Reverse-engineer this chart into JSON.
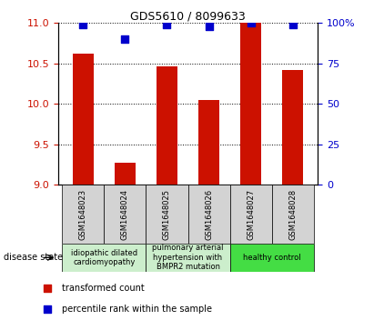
{
  "title": "GDS5610 / 8099633",
  "samples": [
    "GSM1648023",
    "GSM1648024",
    "GSM1648025",
    "GSM1648026",
    "GSM1648027",
    "GSM1648028"
  ],
  "transformed_count": [
    10.62,
    9.27,
    10.47,
    10.05,
    11.0,
    10.42
  ],
  "percentile_rank": [
    99,
    90,
    99,
    98,
    100,
    99
  ],
  "ylim_left": [
    9,
    11
  ],
  "ylim_right": [
    0,
    100
  ],
  "yticks_left": [
    9,
    9.5,
    10,
    10.5,
    11
  ],
  "yticks_right": [
    0,
    25,
    50,
    75,
    100
  ],
  "ytick_labels_right": [
    "0",
    "25",
    "50",
    "75",
    "100%"
  ],
  "bar_color": "#cc1100",
  "dot_color": "#0000cc",
  "grid_color": "black",
  "disease_groups": [
    {
      "label": "idiopathic dilated\ncardiomyopathy",
      "start": 0,
      "end": 2,
      "color": "#cceecc"
    },
    {
      "label": "pulmonary arterial\nhypertension with\nBMPR2 mutation",
      "start": 2,
      "end": 4,
      "color": "#cceecc"
    },
    {
      "label": "healthy control",
      "start": 4,
      "end": 6,
      "color": "#44dd44"
    }
  ],
  "legend_items": [
    {
      "label": "transformed count",
      "color": "#cc1100"
    },
    {
      "label": "percentile rank within the sample",
      "color": "#0000cc"
    }
  ],
  "disease_state_label": "disease state",
  "tick_color_left": "#cc1100",
  "tick_color_right": "#0000cc",
  "bar_width": 0.5,
  "dot_size": 35,
  "sample_box_color": "#d3d3d3",
  "sample_box_edge": "black",
  "title_fontsize": 9,
  "axis_fontsize": 8,
  "sample_fontsize": 6,
  "disease_fontsize": 6,
  "legend_fontsize": 7
}
